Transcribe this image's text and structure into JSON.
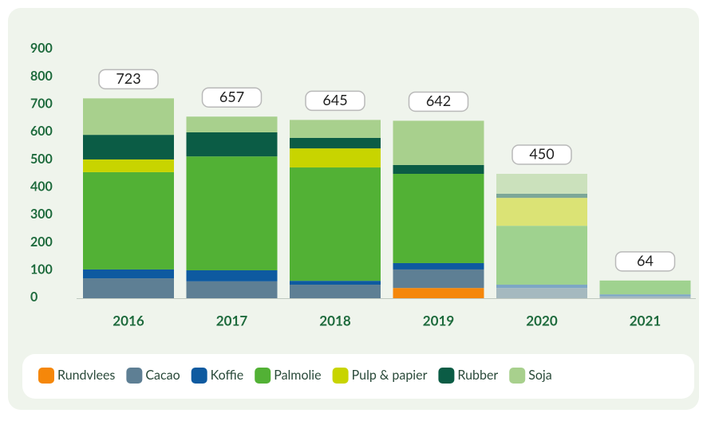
{
  "chart_data": {
    "type": "stacked_bar",
    "categories": [
      "2016",
      "2017",
      "2018",
      "2019",
      "2020",
      "2021"
    ],
    "faded": [
      false,
      false,
      false,
      false,
      true,
      true
    ],
    "totals": [
      723,
      657,
      645,
      642,
      450,
      64
    ],
    "series": [
      {
        "name": "Rundvlees",
        "color": "#f5870a",
        "values": [
          0,
          0,
          0,
          37,
          0,
          0
        ]
      },
      {
        "name": "Cacao",
        "color": "#5e7f94",
        "values": [
          72,
          61,
          49,
          67,
          37,
          7
        ]
      },
      {
        "name": "Koffie",
        "color": "#0e5aa0",
        "values": [
          32,
          40,
          14,
          23,
          12,
          7
        ]
      },
      {
        "name": "Palmolie",
        "color": "#52b135",
        "values": [
          352,
          412,
          410,
          323,
          213,
          50
        ]
      },
      {
        "name": "Pulp & papier",
        "color": "#c8d400",
        "values": [
          46,
          0,
          69,
          0,
          101,
          0
        ]
      },
      {
        "name": "Rubber",
        "color": "#0b5c45",
        "values": [
          89,
          87,
          38,
          32,
          15,
          0
        ]
      },
      {
        "name": "Soja",
        "color": "#a8d08d",
        "values": [
          132,
          57,
          65,
          160,
          72,
          0
        ]
      }
    ],
    "ylim": [
      0,
      900
    ],
    "yticks": [
      0,
      100,
      200,
      300,
      400,
      500,
      600,
      700,
      800,
      900
    ]
  }
}
